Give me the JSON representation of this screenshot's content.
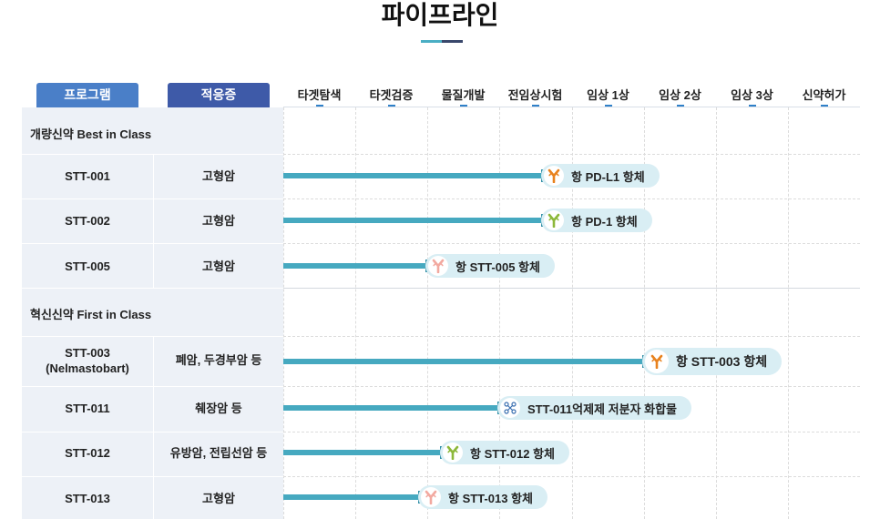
{
  "page_title": "파이프라인",
  "headers": {
    "program": "프로그램",
    "indication": "적응증"
  },
  "stages": [
    "타겟탐색",
    "타겟검증",
    "물질개발",
    "전임상시험",
    "임상 1상",
    "임상 2상",
    "임상 3상",
    "신약허가"
  ],
  "categories": [
    {
      "label": "개량신약 Best in Class"
    },
    {
      "label": "혁신신약 First in Class"
    }
  ],
  "rows": [
    {
      "program": "STT-001",
      "indication": "고형암",
      "stage_progress": 3.6,
      "drug_label": "항 PD-L1 항체",
      "icon": "antibody-icon",
      "icon_color": "#e8821e"
    },
    {
      "program": "STT-002",
      "indication": "고형암",
      "stage_progress": 3.6,
      "drug_label": "항 PD-1 항체",
      "icon": "antibody-icon",
      "icon_color": "#8cb83a"
    },
    {
      "program": "STT-005",
      "indication": "고형암",
      "stage_progress": 2.0,
      "drug_label": "항 STT-005 항체",
      "icon": "antibody-icon",
      "icon_color": "#f2a9a0"
    },
    {
      "program": "STT-003",
      "program_sub": "(Nelmastobart)",
      "indication": "폐암, 두경부암 등",
      "stage_progress": 5.0,
      "drug_label": "항 STT-003 항체",
      "icon": "antibody-icon",
      "icon_color": "#e8821e"
    },
    {
      "program": "STT-011",
      "indication": "췌장암 등",
      "stage_progress": 3.0,
      "drug_label": "STT-011억제제 저분자 화합물",
      "icon": "molecule-icon",
      "icon_color": "#3a6fb0"
    },
    {
      "program": "STT-012",
      "indication": "유방암, 전립선암 등",
      "stage_progress": 2.2,
      "drug_label": "항 STT-012 항체",
      "icon": "antibody-icon",
      "icon_color": "#8cb83a"
    },
    {
      "program": "STT-013",
      "indication": "고형암",
      "stage_progress": 1.9,
      "drug_label": "항 STT-013 항체",
      "icon": "antibody-icon",
      "icon_color": "#f2a9a0"
    }
  ],
  "colors": {
    "program_header": "#4a7fc8",
    "indication_header": "#3e5aa8",
    "bar": "#46a9c0",
    "pill": "#d9eef4"
  }
}
